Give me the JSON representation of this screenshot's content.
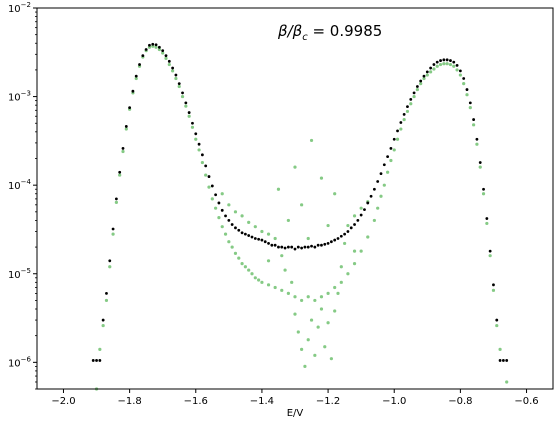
{
  "chart_data": {
    "type": "scatter",
    "title": "",
    "xlabel": "E/V",
    "ylabel": "",
    "xlim": [
      -2.08,
      -0.52
    ],
    "ylim": [
      5e-07,
      0.01
    ],
    "y_scale": "log",
    "grid": false,
    "legend": "none",
    "x_ticks": [
      -2.0,
      -1.8,
      -1.6,
      -1.4,
      -1.2,
      -1.0,
      -0.8,
      -0.6
    ],
    "x_tick_labels": [
      "−2.0",
      "−1.8",
      "−1.6",
      "−1.4",
      "−1.2",
      "−1.0",
      "−0.8",
      "−0.6"
    ],
    "y_ticks": [
      1e-06,
      1e-05,
      0.0001,
      0.001,
      0.01
    ],
    "y_tick_labels": [
      {
        "base": "10",
        "exp": "−6"
      },
      {
        "base": "10",
        "exp": "−5"
      },
      {
        "base": "10",
        "exp": "−4"
      },
      {
        "base": "10",
        "exp": "−3"
      },
      {
        "base": "10",
        "exp": "−2"
      }
    ],
    "annotation": {
      "prefix": "β/β",
      "sub": "c",
      "suffix": " = 0.9985",
      "x": -1.2,
      "y": 0.005
    },
    "colors": {
      "series_black": "#000000",
      "series_green": "#5cb85c"
    },
    "series": [
      {
        "color": "#000000",
        "points": [
          [
            -1.91,
            1.05e-06
          ],
          [
            -1.9,
            1.05e-06
          ],
          [
            -1.89,
            1.05e-06
          ],
          [
            -1.88,
            3e-06
          ],
          [
            -1.87,
            6e-06
          ],
          [
            -1.86,
            1.4e-05
          ],
          [
            -1.85,
            3.2e-05
          ],
          [
            -1.84,
            7e-05
          ],
          [
            -1.83,
            0.00014
          ],
          [
            -1.82,
            0.00026
          ],
          [
            -1.81,
            0.00046
          ],
          [
            -1.8,
            0.00075
          ],
          [
            -1.79,
            0.00115
          ],
          [
            -1.78,
            0.0017
          ],
          [
            -1.77,
            0.0023
          ],
          [
            -1.76,
            0.0029
          ],
          [
            -1.75,
            0.0034
          ],
          [
            -1.74,
            0.0038
          ],
          [
            -1.73,
            0.0039
          ],
          [
            -1.72,
            0.00385
          ],
          [
            -1.71,
            0.0036
          ],
          [
            -1.7,
            0.0033
          ],
          [
            -1.69,
            0.0029
          ],
          [
            -1.68,
            0.0025
          ],
          [
            -1.67,
            0.0021
          ],
          [
            -1.66,
            0.00175
          ],
          [
            -1.65,
            0.0014
          ],
          [
            -1.64,
            0.0011
          ],
          [
            -1.63,
            0.00085
          ],
          [
            -1.62,
            0.00066
          ],
          [
            -1.61,
            0.0005
          ],
          [
            -1.6,
            0.00038
          ],
          [
            -1.59,
            0.00029
          ],
          [
            -1.58,
            0.00022
          ],
          [
            -1.57,
            0.000165
          ],
          [
            -1.56,
            0.000125
          ],
          [
            -1.55,
            9.8e-05
          ],
          [
            -1.54,
            7.8e-05
          ],
          [
            -1.53,
            6.3e-05
          ],
          [
            -1.52,
            5.2e-05
          ],
          [
            -1.51,
            4.5e-05
          ],
          [
            -1.5,
            4e-05
          ],
          [
            -1.49,
            3.6e-05
          ],
          [
            -1.48,
            3.3e-05
          ],
          [
            -1.47,
            3.1e-05
          ],
          [
            -1.46,
            2.9e-05
          ],
          [
            -1.45,
            2.8e-05
          ],
          [
            -1.44,
            2.7e-05
          ],
          [
            -1.43,
            2.6e-05
          ],
          [
            -1.42,
            2.5e-05
          ],
          [
            -1.41,
            2.45e-05
          ],
          [
            -1.4,
            2.4e-05
          ],
          [
            -1.39,
            2.3e-05
          ],
          [
            -1.38,
            2.2e-05
          ],
          [
            -1.37,
            2.1e-05
          ],
          [
            -1.36,
            2.1e-05
          ],
          [
            -1.35,
            2e-05
          ],
          [
            -1.34,
            2e-05
          ],
          [
            -1.33,
            1.95e-05
          ],
          [
            -1.32,
            2e-05
          ],
          [
            -1.31,
            2e-05
          ],
          [
            -1.3,
            1.9e-05
          ],
          [
            -1.29,
            2e-05
          ],
          [
            -1.28,
            1.95e-05
          ],
          [
            -1.27,
            2e-05
          ],
          [
            -1.26,
            2e-05
          ],
          [
            -1.25,
            2.05e-05
          ],
          [
            -1.24,
            2e-05
          ],
          [
            -1.23,
            2.1e-05
          ],
          [
            -1.22,
            2.1e-05
          ],
          [
            -1.21,
            2.15e-05
          ],
          [
            -1.2,
            2.2e-05
          ],
          [
            -1.19,
            2.3e-05
          ],
          [
            -1.18,
            2.4e-05
          ],
          [
            -1.17,
            2.5e-05
          ],
          [
            -1.16,
            2.65e-05
          ],
          [
            -1.15,
            2.8e-05
          ],
          [
            -1.14,
            3e-05
          ],
          [
            -1.13,
            3.3e-05
          ],
          [
            -1.12,
            3.6e-05
          ],
          [
            -1.11,
            4e-05
          ],
          [
            -1.1,
            4.6e-05
          ],
          [
            -1.09,
            5.3e-05
          ],
          [
            -1.08,
            6.3e-05
          ],
          [
            -1.07,
            7.5e-05
          ],
          [
            -1.06,
            9e-05
          ],
          [
            -1.05,
            0.00011
          ],
          [
            -1.04,
            0.000135
          ],
          [
            -1.03,
            0.00017
          ],
          [
            -1.02,
            0.00021
          ],
          [
            -1.01,
            0.00026
          ],
          [
            -1.0,
            0.00033
          ],
          [
            -0.99,
            0.00041
          ],
          [
            -0.98,
            0.00051
          ],
          [
            -0.97,
            0.00063
          ],
          [
            -0.96,
            0.00077
          ],
          [
            -0.95,
            0.00093
          ],
          [
            -0.94,
            0.0011
          ],
          [
            -0.93,
            0.0013
          ],
          [
            -0.92,
            0.0015
          ],
          [
            -0.91,
            0.0017
          ],
          [
            -0.9,
            0.0019
          ],
          [
            -0.89,
            0.0021
          ],
          [
            -0.88,
            0.0023
          ],
          [
            -0.87,
            0.00245
          ],
          [
            -0.86,
            0.00255
          ],
          [
            -0.85,
            0.0026
          ],
          [
            -0.84,
            0.0026
          ],
          [
            -0.83,
            0.00255
          ],
          [
            -0.82,
            0.00245
          ],
          [
            -0.81,
            0.00225
          ],
          [
            -0.8,
            0.00195
          ],
          [
            -0.79,
            0.0016
          ],
          [
            -0.78,
            0.0012
          ],
          [
            -0.77,
            0.00085
          ],
          [
            -0.76,
            0.00055
          ],
          [
            -0.75,
            0.00033
          ],
          [
            -0.74,
            0.00018
          ],
          [
            -0.73,
            9e-05
          ],
          [
            -0.72,
            4.2e-05
          ],
          [
            -0.71,
            1.8e-05
          ],
          [
            -0.7,
            7.5e-06
          ],
          [
            -0.69,
            3e-06
          ],
          [
            -0.68,
            1.05e-06
          ],
          [
            -0.67,
            1.05e-06
          ],
          [
            -0.66,
            1.05e-06
          ]
        ]
      },
      {
        "color": "#5cb85c",
        "points": [
          [
            -1.9,
            5e-07
          ],
          [
            -1.89,
            1.4e-06
          ],
          [
            -1.88,
            2.6e-06
          ],
          [
            -1.87,
            5e-06
          ],
          [
            -1.86,
            1.2e-05
          ],
          [
            -1.85,
            2.8e-05
          ],
          [
            -1.84,
            6.4e-05
          ],
          [
            -1.83,
            0.00013
          ],
          [
            -1.82,
            0.00024
          ],
          [
            -1.81,
            0.00043
          ],
          [
            -1.8,
            0.00072
          ],
          [
            -1.79,
            0.0011
          ],
          [
            -1.78,
            0.0016
          ],
          [
            -1.77,
            0.0022
          ],
          [
            -1.76,
            0.0028
          ],
          [
            -1.75,
            0.0033
          ],
          [
            -1.74,
            0.0036
          ],
          [
            -1.73,
            0.0037
          ],
          [
            -1.72,
            0.0036
          ],
          [
            -1.71,
            0.0034
          ],
          [
            -1.7,
            0.0031
          ],
          [
            -1.69,
            0.0027
          ],
          [
            -1.68,
            0.0023
          ],
          [
            -1.67,
            0.00195
          ],
          [
            -1.66,
            0.0016
          ],
          [
            -1.65,
            0.0013
          ],
          [
            -1.64,
            0.001
          ],
          [
            -1.63,
            0.00078
          ],
          [
            -1.62,
            0.0006
          ],
          [
            -1.61,
            0.00045
          ],
          [
            -1.6,
            0.00033
          ],
          [
            -1.59,
            0.00025
          ],
          [
            -1.58,
            0.00018
          ],
          [
            -1.57,
            0.00013
          ],
          [
            -1.56,
            9.5e-05
          ],
          [
            -1.55,
            7e-05
          ],
          [
            -1.54,
            5.5e-05
          ],
          [
            -1.53,
            4.3e-05
          ],
          [
            -1.52,
            3.4e-05
          ],
          [
            -1.51,
            2.8e-05
          ],
          [
            -1.5,
            2.3e-05
          ],
          [
            -1.49,
            2e-05
          ],
          [
            -1.48,
            1.7e-05
          ],
          [
            -1.47,
            1.5e-05
          ],
          [
            -1.46,
            1.3e-05
          ],
          [
            -1.45,
            1.2e-05
          ],
          [
            -1.44,
            1.1e-05
          ],
          [
            -1.43,
            1e-05
          ],
          [
            -1.42,
            9e-06
          ],
          [
            -1.41,
            8.5e-06
          ],
          [
            -1.4,
            8e-06
          ],
          [
            -1.38,
            7.5e-06
          ],
          [
            -1.36,
            7e-06
          ],
          [
            -1.34,
            6.5e-06
          ],
          [
            -1.32,
            6e-06
          ],
          [
            -1.3,
            5.5e-06
          ],
          [
            -1.28,
            5e-06
          ],
          [
            -1.26,
            5.5e-06
          ],
          [
            -1.24,
            5e-06
          ],
          [
            -1.22,
            5.5e-06
          ],
          [
            -1.2,
            6e-06
          ],
          [
            -1.18,
            7e-06
          ],
          [
            -1.16,
            8e-06
          ],
          [
            -1.14,
            1e-05
          ],
          [
            -1.12,
            1.3e-05
          ],
          [
            -1.1,
            1.8e-05
          ],
          [
            -1.08,
            2.6e-05
          ],
          [
            -1.06,
            4e-05
          ],
          [
            -1.05,
            5.5e-05
          ],
          [
            -1.04,
            7.5e-05
          ],
          [
            -1.03,
            0.0001
          ],
          [
            -1.02,
            0.00014
          ],
          [
            -1.01,
            0.00019
          ],
          [
            -1.0,
            0.00025
          ],
          [
            -0.99,
            0.00033
          ],
          [
            -0.98,
            0.00043
          ],
          [
            -0.97,
            0.00055
          ],
          [
            -0.96,
            0.00068
          ],
          [
            -0.95,
            0.00083
          ],
          [
            -0.94,
            0.001
          ],
          [
            -0.93,
            0.0012
          ],
          [
            -0.92,
            0.0014
          ],
          [
            -0.91,
            0.0016
          ],
          [
            -0.9,
            0.00175
          ],
          [
            -0.89,
            0.0019
          ],
          [
            -0.88,
            0.00205
          ],
          [
            -0.87,
            0.0022
          ],
          [
            -0.86,
            0.0023
          ],
          [
            -0.85,
            0.00235
          ],
          [
            -0.84,
            0.00235
          ],
          [
            -0.83,
            0.0023
          ],
          [
            -0.82,
            0.0022
          ],
          [
            -0.81,
            0.002
          ],
          [
            -0.8,
            0.00175
          ],
          [
            -0.79,
            0.0014
          ],
          [
            -0.78,
            0.00105
          ],
          [
            -0.77,
            0.00075
          ],
          [
            -0.76,
            0.00048
          ],
          [
            -0.75,
            0.00029
          ],
          [
            -0.74,
            0.00016
          ],
          [
            -0.73,
            8e-05
          ],
          [
            -0.72,
            3.7e-05
          ],
          [
            -0.71,
            1.6e-05
          ],
          [
            -0.7,
            6.5e-06
          ],
          [
            -0.69,
            2.6e-06
          ],
          [
            -0.68,
            1.4e-06
          ],
          [
            -0.66,
            6e-07
          ],
          [
            -1.52,
            8e-05
          ],
          [
            -1.5,
            6e-05
          ],
          [
            -1.48,
            5e-05
          ],
          [
            -1.46,
            4.5e-05
          ],
          [
            -1.44,
            3.8e-05
          ],
          [
            -1.42,
            3.4e-05
          ],
          [
            -1.4,
            3e-05
          ],
          [
            -1.38,
            2.8e-05
          ],
          [
            -1.36,
            2.5e-05
          ],
          [
            -1.34,
            1.6e-05
          ],
          [
            -1.33,
            1.1e-05
          ],
          [
            -1.31,
            8e-06
          ],
          [
            -1.3,
            3.5e-06
          ],
          [
            -1.29,
            2.2e-06
          ],
          [
            -1.28,
            1.4e-06
          ],
          [
            -1.27,
            9e-07
          ],
          [
            -1.26,
            1.8e-06
          ],
          [
            -1.25,
            3e-06
          ],
          [
            -1.24,
            1.2e-06
          ],
          [
            -1.23,
            2.5e-06
          ],
          [
            -1.22,
            4e-06
          ],
          [
            -1.21,
            1.5e-06
          ],
          [
            -1.2,
            2.8e-06
          ],
          [
            -1.19,
            1.1e-06
          ],
          [
            -1.18,
            3.8e-06
          ],
          [
            -1.17,
            6e-06
          ],
          [
            -1.16,
            1.2e-05
          ],
          [
            -1.15,
            2.2e-05
          ],
          [
            -1.14,
            3.5e-05
          ],
          [
            -1.12,
            4.5e-05
          ],
          [
            -1.1,
            5.5e-05
          ],
          [
            -1.08,
            6.5e-05
          ],
          [
            -1.3,
            0.00016
          ],
          [
            -1.25,
            0.00032
          ],
          [
            -1.22,
            0.00012
          ],
          [
            -1.35,
            9e-05
          ],
          [
            -1.18,
            8e-05
          ],
          [
            -1.28,
            6e-05
          ],
          [
            -1.32,
            4e-05
          ],
          [
            -1.2,
            3.5e-05
          ],
          [
            -1.26,
            2.5e-05
          ],
          [
            -1.38,
            1.4e-05
          ],
          [
            -1.12,
            1.8e-05
          ]
        ]
      }
    ]
  }
}
